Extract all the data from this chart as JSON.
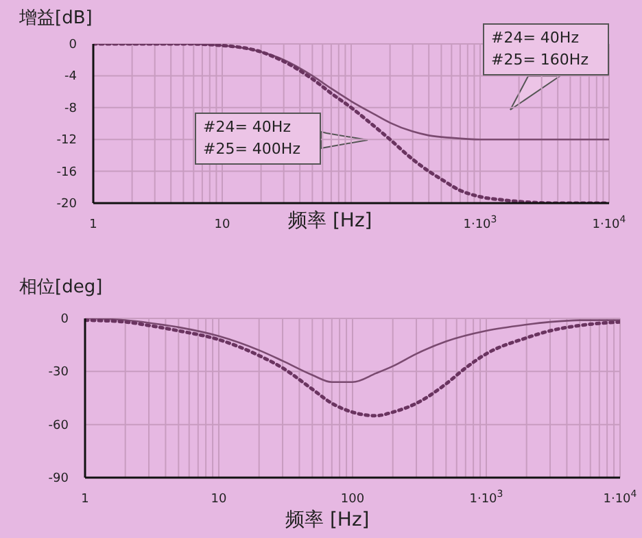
{
  "chart_data": [
    {
      "type": "line",
      "ylabel": "增益[dB]",
      "xlabel": "频率 [Hz]",
      "log": "x",
      "grid": true,
      "xlim": [
        1,
        10000
      ],
      "xticks": [
        1,
        {
          "value": 2,
          "label": null
        },
        {
          "value": 3,
          "label": null
        },
        {
          "value": 4,
          "label": null
        },
        {
          "value": 5,
          "label": null
        },
        {
          "value": 6,
          "label": null
        },
        {
          "value": 7,
          "label": null
        },
        {
          "value": 8,
          "label": null
        },
        {
          "value": 9,
          "label": null
        },
        10,
        {
          "value": 20,
          "label": null
        },
        {
          "value": 30,
          "label": null
        },
        {
          "value": 40,
          "label": null
        },
        {
          "value": 50,
          "label": null
        },
        {
          "value": 60,
          "label": null
        },
        {
          "value": 70,
          "label": null
        },
        {
          "value": 80,
          "label": null
        },
        {
          "value": 90,
          "label": null
        },
        {
          "value": 100,
          "label": null
        },
        {
          "value": 200,
          "label": null
        },
        {
          "value": 300,
          "label": null
        },
        {
          "value": 400,
          "label": null
        },
        {
          "value": 500,
          "label": null
        },
        {
          "value": 600,
          "label": null
        },
        {
          "value": 700,
          "label": null
        },
        {
          "value": 800,
          "label": null
        },
        {
          "value": 900,
          "label": null
        },
        {
          "value": 1000,
          "label": "1·10$^{3}$"
        },
        {
          "value": 2000,
          "label": null
        },
        {
          "value": 3000,
          "label": null
        },
        {
          "value": 4000,
          "label": null
        },
        {
          "value": 5000,
          "label": null
        },
        {
          "value": 6000,
          "label": null
        },
        {
          "value": 7000,
          "label": null
        },
        {
          "value": 8000,
          "label": null
        },
        {
          "value": 9000,
          "label": null
        },
        {
          "value": 10000,
          "label": "1·10$^{4}$"
        }
      ],
      "ylim": [
        -20,
        0
      ],
      "yticks": [
        0,
        -4,
        -8,
        -12,
        -16,
        -20
      ],
      "annotations": [
        "#24= 40Hz\n#25= 160Hz",
        "#24= 40Hz\n#25= 400Hz"
      ],
      "legend": false,
      "series": [
        {
          "color": "#7a4a70",
          "line_style": "solid",
          "x": [
            1,
            5,
            10,
            20,
            30,
            50,
            70,
            100,
            150,
            200,
            300,
            400,
            600,
            1000,
            3000,
            10000
          ],
          "values": [
            0,
            0,
            -0.2,
            -1,
            -2,
            -4,
            -5.6,
            -7.2,
            -8.8,
            -9.9,
            -11,
            -11.5,
            -11.8,
            -12,
            -12,
            -12
          ]
        },
        {
          "color": "#6a3460",
          "line_style": "dotted",
          "x": [
            1,
            5,
            10,
            20,
            30,
            50,
            70,
            100,
            150,
            200,
            300,
            400,
            500,
            700,
            1000,
            1500,
            2000,
            4000,
            10000
          ],
          "values": [
            0,
            0,
            -0.2,
            -1,
            -2.2,
            -4.4,
            -6.2,
            -8,
            -10.3,
            -12,
            -14.5,
            -16,
            -17,
            -18.4,
            -19.2,
            -19.6,
            -19.8,
            -20,
            -20
          ]
        }
      ]
    },
    {
      "type": "line",
      "ylabel": "相位[deg]",
      "xlabel": "频率 [Hz]",
      "log": "x",
      "grid": true,
      "legend": false,
      "xlim": [
        1,
        10000
      ],
      "xticks": [
        1,
        {
          "value": 2,
          "label": null
        },
        {
          "value": 3,
          "label": null
        },
        {
          "value": 4,
          "label": null
        },
        {
          "value": 5,
          "label": null
        },
        {
          "value": 6,
          "label": null
        },
        {
          "value": 7,
          "label": null
        },
        {
          "value": 8,
          "label": null
        },
        {
          "value": 9,
          "label": null
        },
        10,
        {
          "value": 20,
          "label": null
        },
        {
          "value": 30,
          "label": null
        },
        {
          "value": 40,
          "label": null
        },
        {
          "value": 50,
          "label": null
        },
        {
          "value": 60,
          "label": null
        },
        {
          "value": 70,
          "label": null
        },
        {
          "value": 80,
          "label": null
        },
        {
          "value": 90,
          "label": null
        },
        100,
        {
          "value": 200,
          "label": null
        },
        {
          "value": 300,
          "label": null
        },
        {
          "value": 400,
          "label": null
        },
        {
          "value": 500,
          "label": null
        },
        {
          "value": 600,
          "label": null
        },
        {
          "value": 700,
          "label": null
        },
        {
          "value": 800,
          "label": null
        },
        {
          "value": 900,
          "label": null
        },
        {
          "value": 1000,
          "label": "1·10$^{3}$"
        },
        {
          "value": 2000,
          "label": null
        },
        {
          "value": 3000,
          "label": null
        },
        {
          "value": 4000,
          "label": null
        },
        {
          "value": 5000,
          "label": null
        },
        {
          "value": 6000,
          "label": null
        },
        {
          "value": 7000,
          "label": null
        },
        {
          "value": 8000,
          "label": null
        },
        {
          "value": 9000,
          "label": null
        },
        {
          "value": 10000,
          "label": "1·10$^{4}$"
        }
      ],
      "ylim": [
        -90,
        0
      ],
      "yticks": [
        0,
        -30,
        -60,
        -90
      ],
      "series": [
        {
          "color": "#7a4a70",
          "line_style": "solid",
          "x": [
            1,
            2,
            3,
            5,
            10,
            20,
            30,
            50,
            70,
            100,
            150,
            200,
            300,
            500,
            1000,
            2000,
            3000,
            5000,
            10000
          ],
          "values": [
            0,
            -1,
            -2.5,
            -5,
            -10,
            -18,
            -24,
            -32,
            -36,
            -36,
            -31,
            -27,
            -20,
            -13,
            -7,
            -3.5,
            -2,
            -1,
            -1
          ]
        },
        {
          "color": "#6a3460",
          "line_style": "dotted",
          "x": [
            1,
            2,
            3,
            5,
            10,
            20,
            30,
            50,
            70,
            100,
            150,
            200,
            300,
            500,
            700,
            1000,
            2000,
            3000,
            5000,
            10000
          ],
          "values": [
            -1,
            -2,
            -4,
            -7,
            -12,
            -21,
            -28,
            -40,
            -48,
            -53,
            -55,
            -53,
            -48,
            -37,
            -28,
            -20,
            -11,
            -7,
            -4,
            -2
          ]
        }
      ]
    }
  ]
}
